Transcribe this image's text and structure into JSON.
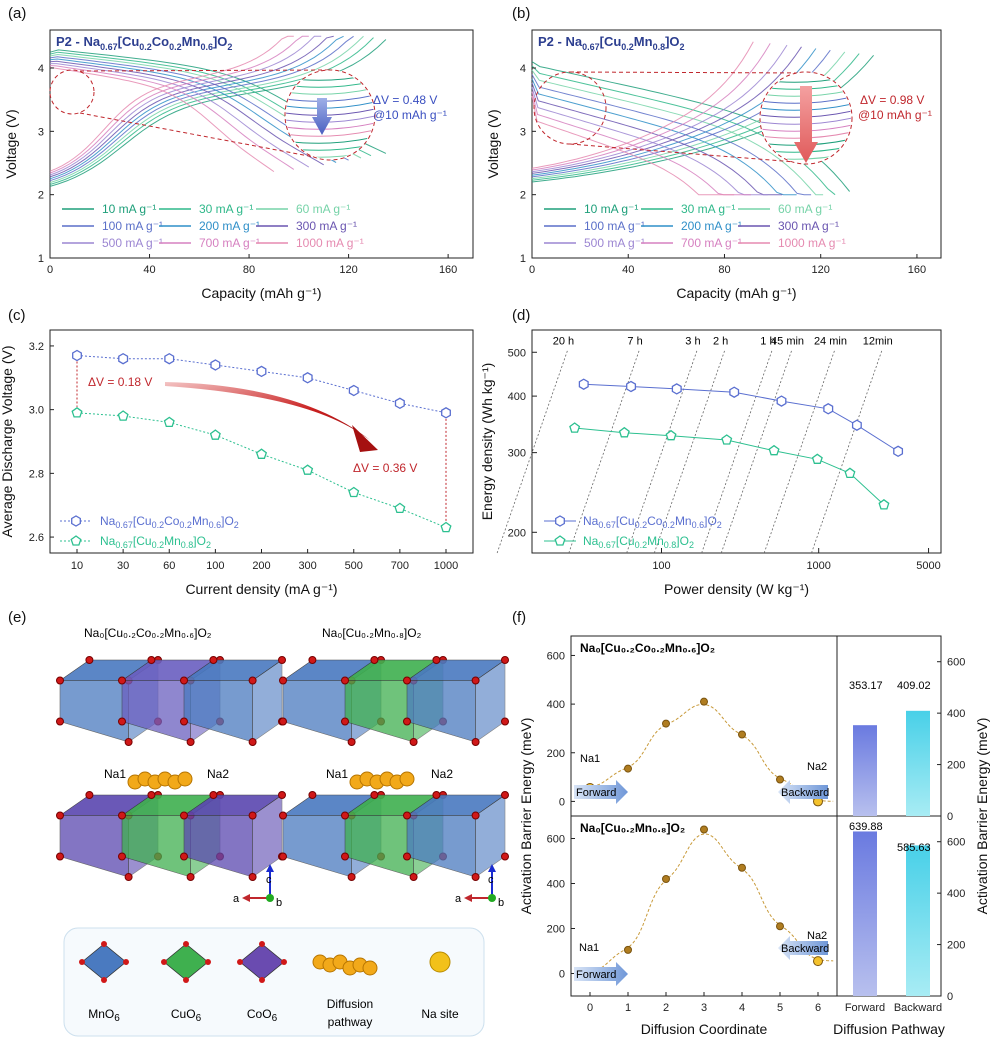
{
  "colors": {
    "rates": [
      "#1e9f7a",
      "#2fb88a",
      "#76d3a8",
      "#5a6fc8",
      "#2f8fc8",
      "#6a55b0",
      "#9c86d2",
      "#d680c0",
      "#e58ab0"
    ],
    "mn_blue": "#4a7ac0",
    "cu_green": "#3fb04f",
    "co_purple": "#6a4bb0",
    "series_a": "#5a6fd0",
    "series_b": "#2dc090",
    "red": "#c0272d"
  },
  "panels": {
    "a": {
      "label": "(a)",
      "title_main": "P2 - Na",
      "title_sub1": "0.67",
      "title_mid": "[Cu",
      "title_sub2": "0.2",
      "title_mid2": "Co",
      "title_sub3": "0.2",
      "title_mid3": "Mn",
      "title_sub4": "0.6",
      "title_end": "]O",
      "title_sub5": "2",
      "delta": "ΔV = 0.48 V",
      "delta2": "@10 mAh g⁻¹"
    },
    "b": {
      "label": "(b)",
      "title_main": "P2 - Na",
      "title_sub1": "0.67",
      "title_mid": "[Cu",
      "title_sub2": "0.2",
      "title_mid2": "Mn",
      "title_sub3": "0.8",
      "title_end": "]O",
      "title_sub4": "2",
      "delta": "ΔV = 0.98 V",
      "delta2": "@10 mAh g⁻¹"
    },
    "c": {
      "label": "(c)",
      "delta1": "ΔV = 0.18 V",
      "delta2": "ΔV = 0.36 V"
    },
    "d": {
      "label": "(d)"
    },
    "e": {
      "label": "(e)",
      "struct1": "Na₀[Cu₀.₂Co₀.₂Mn₀.₆]O₂",
      "struct2": "Na₀[Cu₀.₂Mn₀.₈]O₂",
      "na1": "Na1",
      "na2": "Na2",
      "axis_c": "c",
      "axis_a": "a",
      "axis_b": "b",
      "legend": [
        "MnO",
        "CuO",
        "CoO",
        "Diffusion",
        "Na site"
      ],
      "legend_sub": "6",
      "legend_extra": "pathway"
    },
    "f": {
      "label": "(f)",
      "sub1": "Na₀[Cu₀.₂Co₀.₂Mn₀.₆]O₂",
      "sub2": "Na₀[Cu₀.₂Mn₀.₈]O₂",
      "na1": "Na1",
      "na2": "Na2",
      "forward": "Forward",
      "backward": "Backward",
      "bar_vals_top": [
        "353.17",
        "409.02"
      ],
      "bar_vals_bot": [
        "639.88",
        "585.63"
      ]
    }
  },
  "rate_labels": [
    "10 mA g⁻¹",
    "30 mA g⁻¹",
    "60 mA g⁻¹",
    "100 mA g⁻¹",
    "200 mA g⁻¹",
    "300 mA g⁻¹",
    "500 mA g⁻¹",
    "700 mA g⁻¹",
    "1000 mA g⁻¹"
  ],
  "chart_data": [
    {
      "id": "a",
      "type": "line",
      "xlabel": "Capacity (mAh g⁻¹)",
      "ylabel": "Voltage (V)",
      "xlim": [
        0,
        170
      ],
      "ylim": [
        1,
        4.6
      ],
      "xticks": [
        0,
        40,
        80,
        120,
        160
      ],
      "yticks": [
        1,
        2,
        3,
        4
      ],
      "charge_end": [
        135,
        130,
        126,
        122,
        118,
        114,
        109,
        104,
        98
      ],
      "discharge_end": [
        135,
        129,
        125,
        120,
        115,
        110,
        104,
        98,
        90
      ]
    },
    {
      "id": "b",
      "type": "line",
      "xlabel": "Capacity (mAh g⁻¹)",
      "ylabel": "Voltage (V)",
      "xlim": [
        0,
        170
      ],
      "ylim": [
        1,
        4.6
      ],
      "xticks": [
        0,
        40,
        80,
        120,
        160
      ],
      "yticks": [
        1,
        2,
        3,
        4
      ],
      "charge_end": [
        142,
        136,
        130,
        124,
        118,
        112,
        106,
        99,
        92
      ],
      "discharge_end": [
        132,
        126,
        121,
        116,
        110,
        104,
        98,
        91,
        84
      ]
    },
    {
      "id": "c",
      "type": "line",
      "xlabel": "Current density (mA g⁻¹)",
      "ylabel": "Average Discharge Voltage (V)",
      "categories": [
        "10",
        "30",
        "60",
        "100",
        "200",
        "300",
        "500",
        "700",
        "1000"
      ],
      "ylim": [
        2.55,
        3.25
      ],
      "yticks": [
        2.6,
        2.8,
        3.0,
        3.2
      ],
      "series": [
        {
          "name": "Na0.67[Cu0.2Co0.2Mn0.6]O2",
          "values": [
            3.17,
            3.16,
            3.16,
            3.14,
            3.12,
            3.1,
            3.06,
            3.02,
            2.99
          ]
        },
        {
          "name": "Na0.67[Cu0.2Mn0.8]O2",
          "values": [
            2.99,
            2.98,
            2.96,
            2.92,
            2.86,
            2.81,
            2.74,
            2.69,
            2.63
          ]
        }
      ]
    },
    {
      "id": "d",
      "type": "scatter",
      "xlabel": "Power density (W kg⁻¹)",
      "ylabel": "Energy density (Wh kg⁻¹)",
      "xscale": "log",
      "yscale": "log",
      "xlim": [
        15,
        6000
      ],
      "ylim": [
        180,
        560
      ],
      "xticks": [
        100,
        1000,
        5000
      ],
      "yticks": [
        200,
        300,
        400,
        500
      ],
      "time_labels": [
        "20 h",
        "7 h",
        "3 h",
        "2 h",
        "1 h",
        "45 min",
        "24 min",
        "12min"
      ],
      "series": [
        {
          "name": "Na0.67[Cu0.2Co0.2Mn0.6]O2",
          "x": [
            32,
            64,
            125,
            290,
            580,
            1150,
            1750,
            3200
          ],
          "y": [
            425,
            420,
            415,
            408,
            390,
            375,
            345,
            302
          ]
        },
        {
          "name": "Na0.67[Cu0.2Mn0.8]O2",
          "x": [
            28,
            58,
            115,
            260,
            520,
            980,
            1580,
            2600
          ],
          "y": [
            340,
            332,
            327,
            320,
            303,
            290,
            270,
            230
          ]
        }
      ]
    },
    {
      "id": "f_top",
      "type": "scatter",
      "xlabel": "Diffusion Coordinate",
      "ylabel": "Activation Barrier Energy (meV)",
      "x": [
        0,
        1,
        2,
        3,
        4,
        5,
        6
      ],
      "y": [
        55,
        135,
        320,
        410,
        275,
        90,
        0
      ],
      "xlim": [
        -0.5,
        6.5
      ],
      "ylim": [
        -60,
        680
      ],
      "yticks": [
        0,
        200,
        400,
        600
      ]
    },
    {
      "id": "f_bot",
      "type": "scatter",
      "xlabel": "Diffusion Coordinate",
      "ylabel": "Activation Barrier Energy (meV)",
      "x": [
        0,
        1,
        2,
        3,
        4,
        5,
        6
      ],
      "y": [
        0,
        105,
        420,
        640,
        470,
        210,
        55
      ],
      "xlim": [
        -0.5,
        6.5
      ],
      "ylim": [
        -100,
        700
      ],
      "yticks": [
        0,
        200,
        400,
        600
      ]
    },
    {
      "id": "f_bar_top",
      "type": "bar",
      "xlabel": "Diffusion Pathway",
      "ylabel": "Activation Barrier Energy (meV)",
      "categories": [
        "Forward",
        "Backward"
      ],
      "values": [
        353.17,
        409.02
      ],
      "ylim": [
        0,
        700
      ],
      "yticks": [
        0,
        200,
        400,
        600
      ]
    },
    {
      "id": "f_bar_bot",
      "type": "bar",
      "xlabel": "Diffusion Pathway",
      "ylabel": "Activation Barrier Energy (meV)",
      "categories": [
        "Forward",
        "Backward"
      ],
      "values": [
        639.88,
        585.63
      ],
      "ylim": [
        0,
        700
      ],
      "yticks": [
        0,
        200,
        400,
        600
      ]
    }
  ]
}
